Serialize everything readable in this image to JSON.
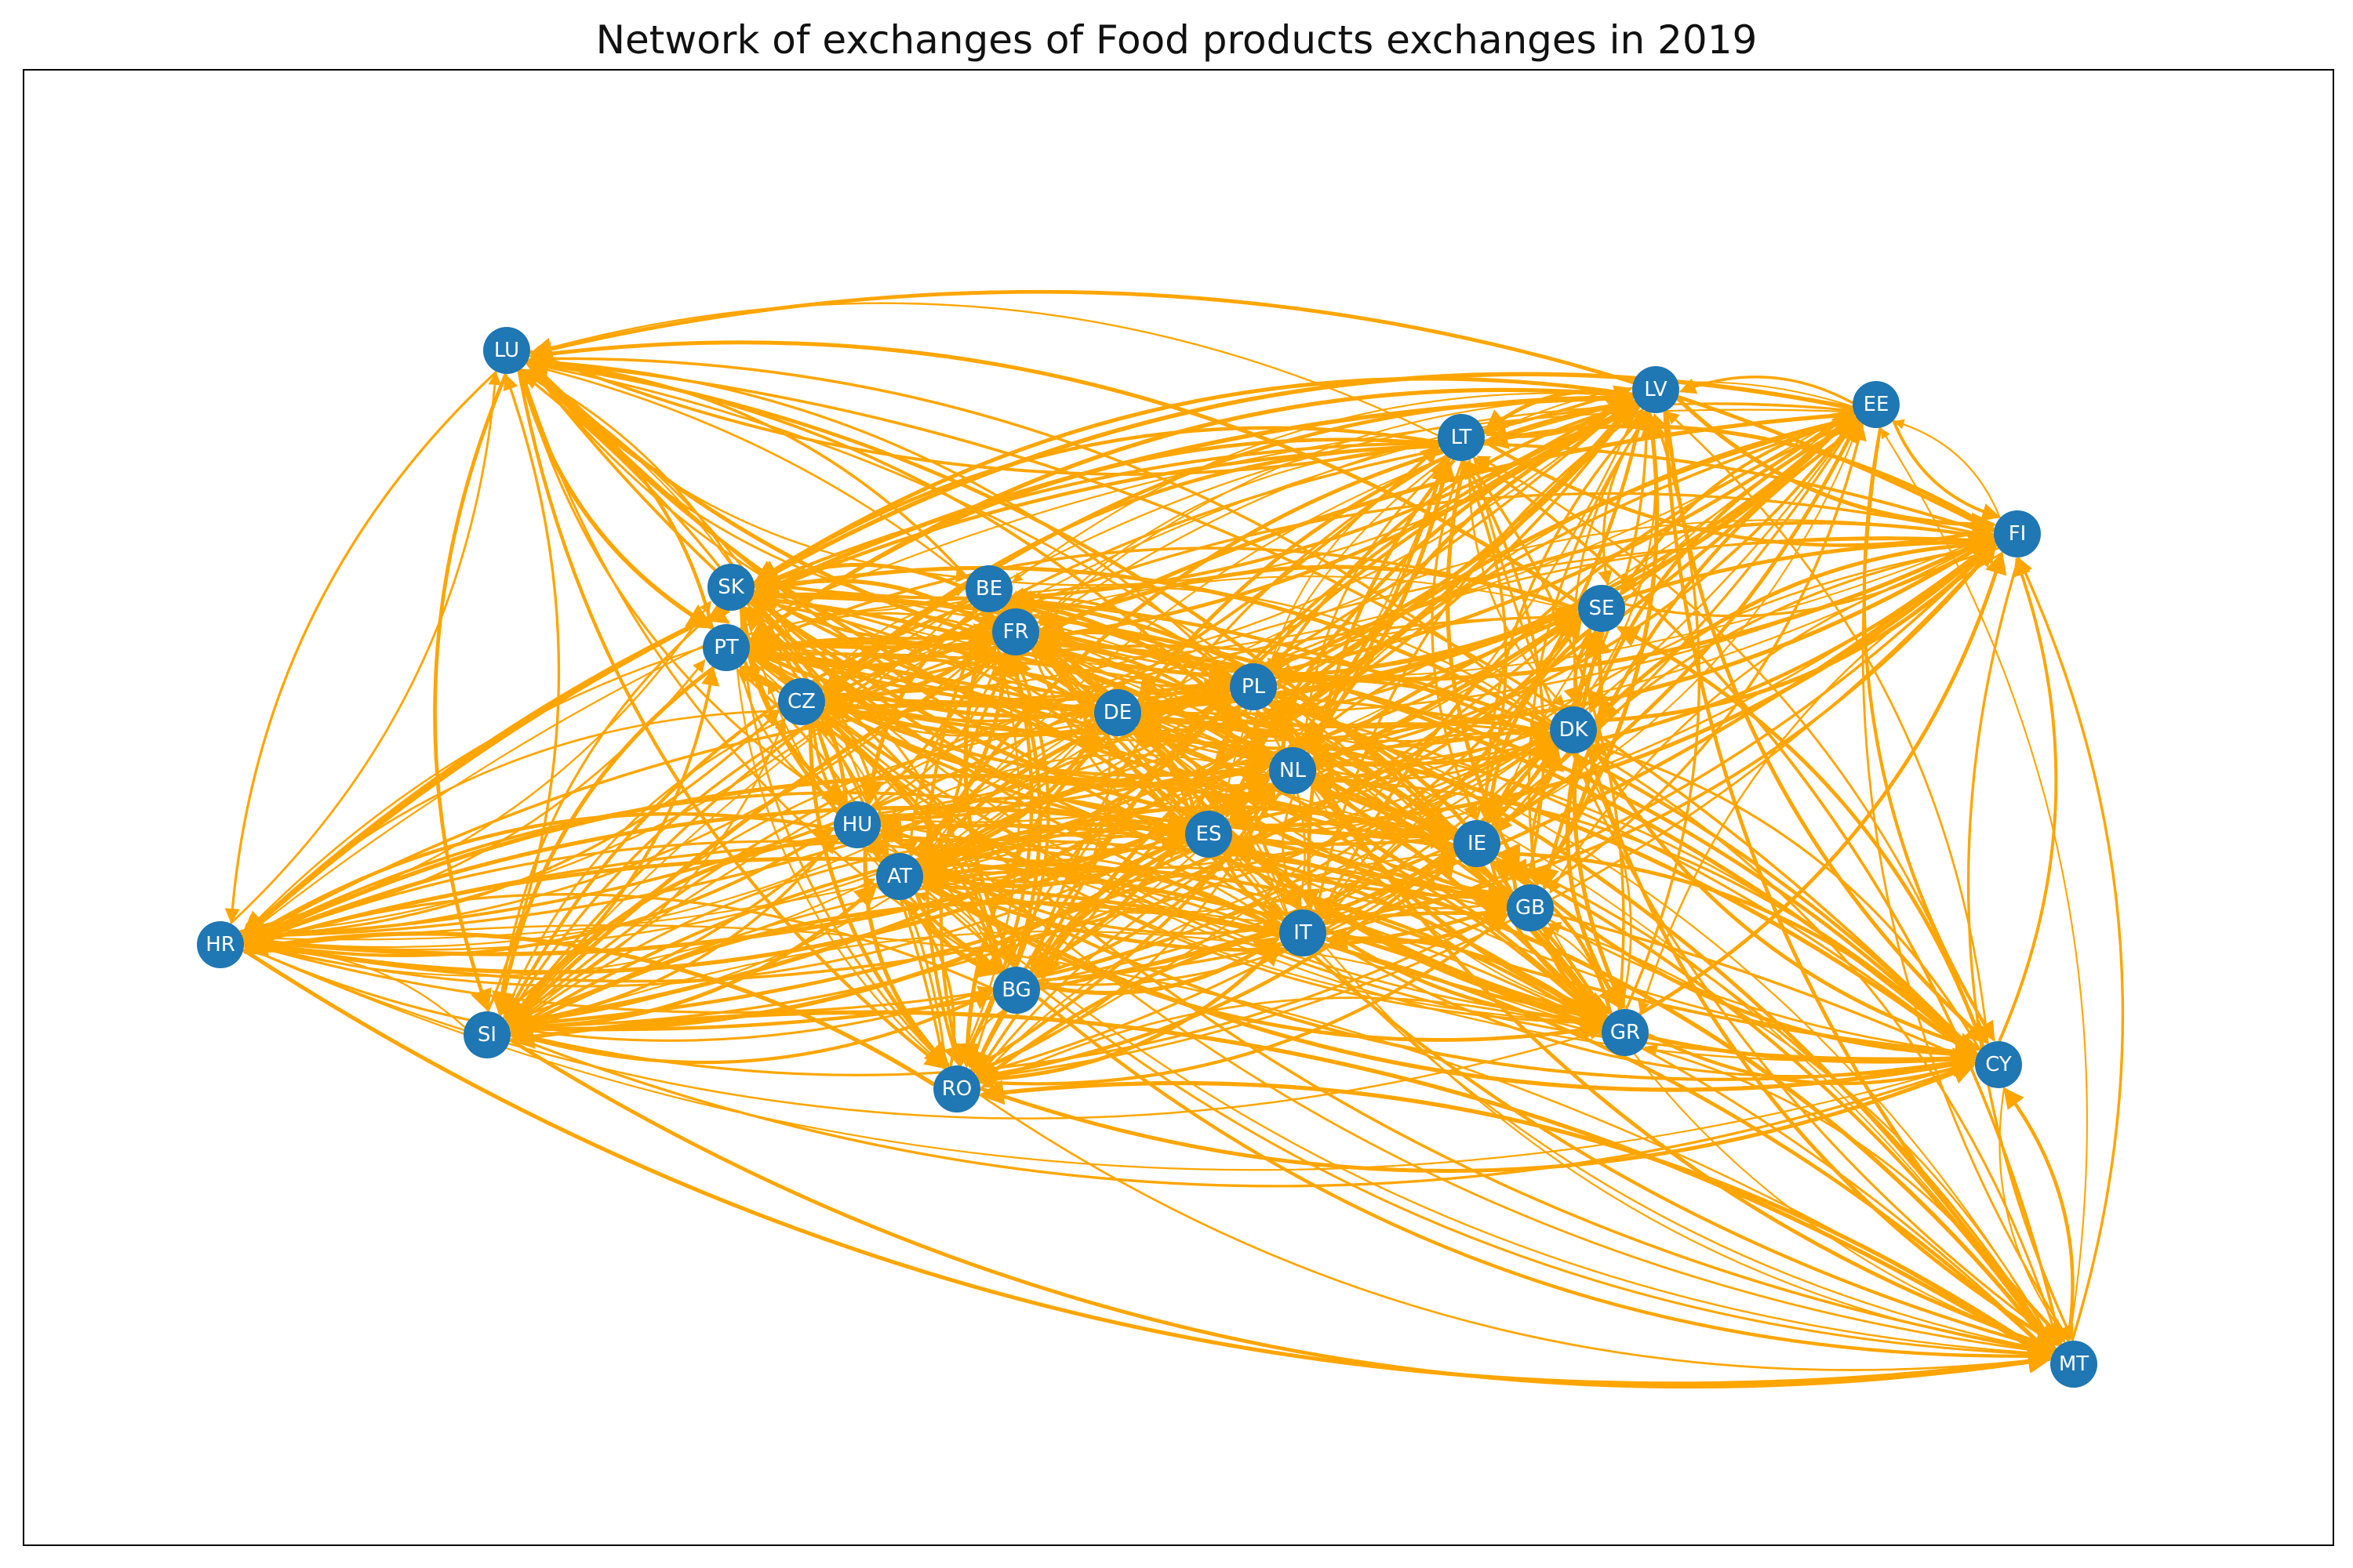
{
  "title": "Network of exchanges of Food products exchanges in 2019",
  "colors": {
    "edge": "#FFA500",
    "node": "#1f77b4",
    "label": "#ffffff",
    "frame": "#000000"
  },
  "nodes": [
    {
      "id": "LU",
      "label": "LU"
    },
    {
      "id": "LV",
      "label": "LV"
    },
    {
      "id": "EE",
      "label": "EE"
    },
    {
      "id": "LT",
      "label": "LT"
    },
    {
      "id": "FI",
      "label": "FI"
    },
    {
      "id": "SK",
      "label": "SK"
    },
    {
      "id": "BE",
      "label": "BE"
    },
    {
      "id": "FR",
      "label": "FR"
    },
    {
      "id": "PT",
      "label": "PT"
    },
    {
      "id": "SE",
      "label": "SE"
    },
    {
      "id": "CZ",
      "label": "CZ"
    },
    {
      "id": "DE",
      "label": "DE"
    },
    {
      "id": "PL",
      "label": "PL"
    },
    {
      "id": "DK",
      "label": "DK"
    },
    {
      "id": "NL",
      "label": "NL"
    },
    {
      "id": "HU",
      "label": "HU"
    },
    {
      "id": "ES",
      "label": "ES"
    },
    {
      "id": "IE",
      "label": "IE"
    },
    {
      "id": "AT",
      "label": "AT"
    },
    {
      "id": "GB",
      "label": "GB"
    },
    {
      "id": "HR",
      "label": "HR"
    },
    {
      "id": "IT",
      "label": "IT"
    },
    {
      "id": "BG",
      "label": "BG"
    },
    {
      "id": "SI",
      "label": "SI"
    },
    {
      "id": "GR",
      "label": "GR"
    },
    {
      "id": "CY",
      "label": "CY"
    },
    {
      "id": "RO",
      "label": "RO"
    },
    {
      "id": "MT",
      "label": "MT"
    }
  ]
}
